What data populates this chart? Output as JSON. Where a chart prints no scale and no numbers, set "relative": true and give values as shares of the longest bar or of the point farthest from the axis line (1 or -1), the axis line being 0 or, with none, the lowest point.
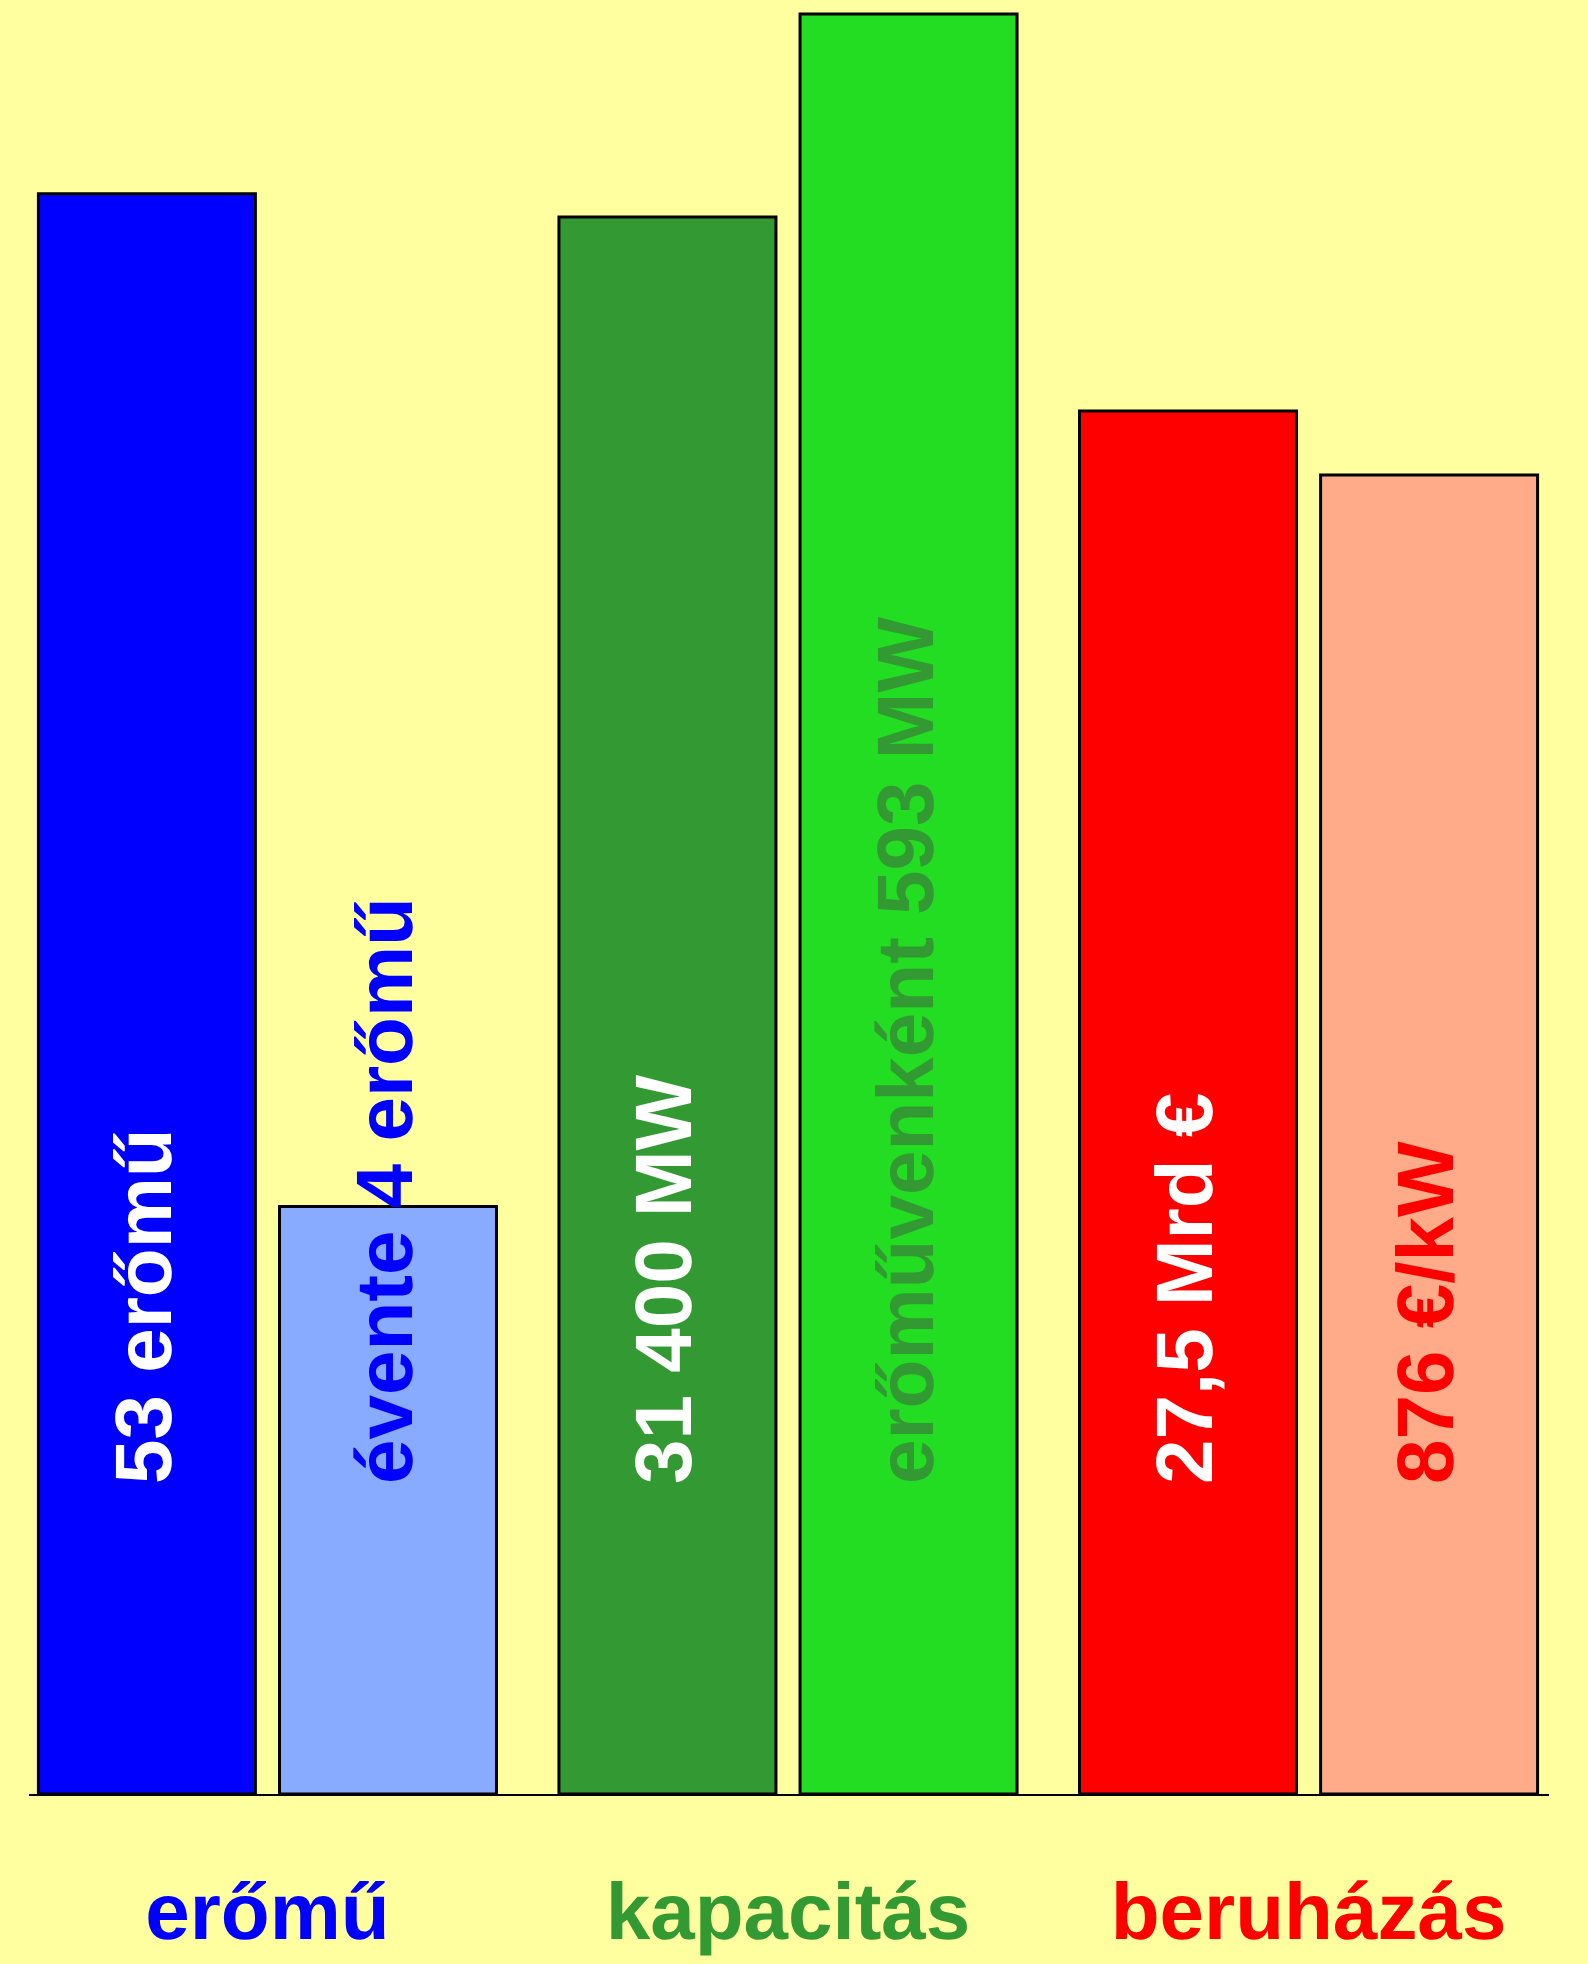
{
  "chart_data": {
    "type": "bar",
    "relative": true,
    "categories": [
      "erőmű",
      "kapacitás",
      "beruházás"
    ],
    "series": [
      {
        "colors": [
          "#0000ff",
          "#339933",
          "#ff0000"
        ],
        "values": [
          0.899,
          0.886,
          0.777
        ]
      },
      {
        "colors": [
          "#88aaff",
          "#22dd22",
          "#ffaa88"
        ],
        "values": [
          0.33,
          1,
          0.741
        ]
      }
    ],
    "annotations": [
      "53 erőmű",
      "évente 4 erőmű",
      "31 400 MW",
      "erőművenként 593 MW",
      "27,5 Mrd €",
      "876 €/kW"
    ]
  }
}
